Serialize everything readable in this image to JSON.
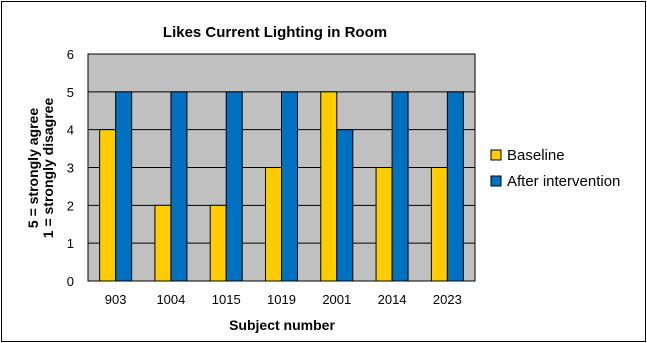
{
  "chart_data": {
    "type": "bar",
    "title": "Likes Current Lighting in Room",
    "xlabel": "Subject number",
    "ylabel_lines": [
      "5 = strongly agree",
      "1 = strongly disagree"
    ],
    "categories": [
      "903",
      "1004",
      "1015",
      "1019",
      "2001",
      "2014",
      "2023"
    ],
    "series": [
      {
        "name": "Baseline",
        "color": "#ffcc00",
        "values": [
          4,
          2,
          2,
          3,
          5,
          3,
          3
        ]
      },
      {
        "name": "After intervention",
        "color": "#0070c0",
        "values": [
          5,
          5,
          5,
          5,
          4,
          5,
          5
        ]
      }
    ],
    "ylim": [
      0,
      6
    ],
    "yticks": [
      "0",
      "1",
      "2",
      "3",
      "4",
      "5",
      "6"
    ],
    "grid": true,
    "plot_background": "#c0c0c0",
    "legend_position": "right"
  }
}
